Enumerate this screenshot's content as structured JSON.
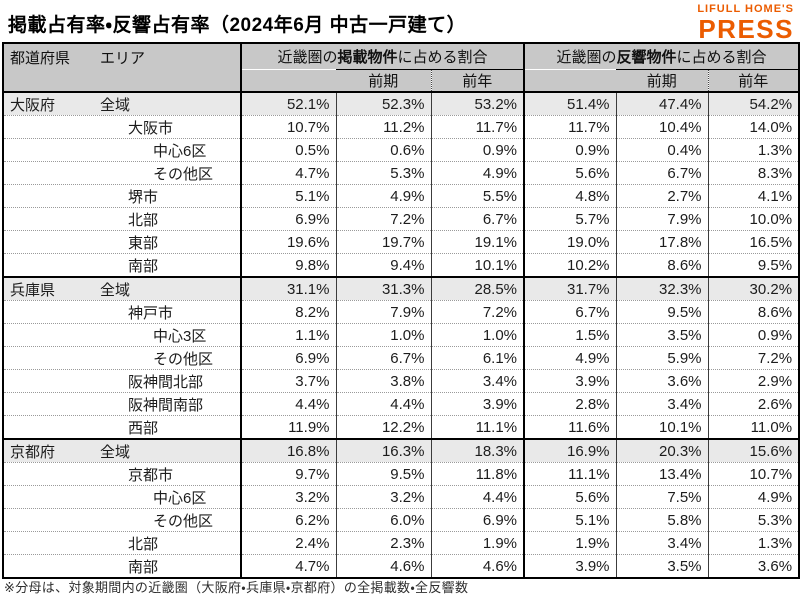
{
  "title": "掲載占有率・反響占有率（2024年6月 中古一戸建て）",
  "logo": {
    "line1": "LIFULL HOME'S",
    "line2": "PRESS",
    "color": "#EB5C01"
  },
  "header": {
    "pref_col": "都道府県",
    "area_col": "エリア",
    "listing": {
      "prefix": "近畿圏の",
      "bold": "掲載物件",
      "suffix": "に占める割合"
    },
    "response": {
      "prefix": "近畿圏の",
      "bold": "反響物件",
      "suffix": "に占める割合"
    },
    "sub": {
      "prev_term": "前期",
      "prev_year": "前年"
    }
  },
  "colors": {
    "header_bg": "#c8c8c8",
    "highlight_bg": "#e9e9e9",
    "accent": "#EB5C01"
  },
  "footnote": "※分母は、対象期間内の近畿圏（大阪府・兵庫県・京都府）の全掲載数・全反響数",
  "chart_data": {
    "type": "table",
    "title": "掲載占有率・反響占有率（2024年6月 中古一戸建て）",
    "columns": [
      "都道府県",
      "エリア",
      "掲載:当期",
      "掲載:前期",
      "掲載:前年",
      "反響:当期",
      "反響:前期",
      "反響:前年"
    ],
    "sections": [
      {
        "prefecture": "大阪府",
        "rows": [
          {
            "area": "全域",
            "indent": 0,
            "highlight": true,
            "values": [
              "52.1%",
              "52.3%",
              "53.2%",
              "51.4%",
              "47.4%",
              "54.2%"
            ]
          },
          {
            "area": "大阪市",
            "indent": 1,
            "highlight": false,
            "values": [
              "10.7%",
              "11.2%",
              "11.7%",
              "11.7%",
              "10.4%",
              "14.0%"
            ]
          },
          {
            "area": "中心6区",
            "indent": 2,
            "highlight": false,
            "values": [
              "0.5%",
              "0.6%",
              "0.9%",
              "0.9%",
              "0.4%",
              "1.3%"
            ]
          },
          {
            "area": "その他区",
            "indent": 2,
            "highlight": false,
            "values": [
              "4.7%",
              "5.3%",
              "4.9%",
              "5.6%",
              "6.7%",
              "8.3%"
            ]
          },
          {
            "area": "堺市",
            "indent": 1,
            "highlight": false,
            "values": [
              "5.1%",
              "4.9%",
              "5.5%",
              "4.8%",
              "2.7%",
              "4.1%"
            ]
          },
          {
            "area": "北部",
            "indent": 1,
            "highlight": false,
            "values": [
              "6.9%",
              "7.2%",
              "6.7%",
              "5.7%",
              "7.9%",
              "10.0%"
            ]
          },
          {
            "area": "東部",
            "indent": 1,
            "highlight": false,
            "values": [
              "19.6%",
              "19.7%",
              "19.1%",
              "19.0%",
              "17.8%",
              "16.5%"
            ]
          },
          {
            "area": "南部",
            "indent": 1,
            "highlight": false,
            "values": [
              "9.8%",
              "9.4%",
              "10.1%",
              "10.2%",
              "8.6%",
              "9.5%"
            ]
          }
        ]
      },
      {
        "prefecture": "兵庫県",
        "rows": [
          {
            "area": "全域",
            "indent": 0,
            "highlight": true,
            "values": [
              "31.1%",
              "31.3%",
              "28.5%",
              "31.7%",
              "32.3%",
              "30.2%"
            ]
          },
          {
            "area": "神戸市",
            "indent": 1,
            "highlight": false,
            "values": [
              "8.2%",
              "7.9%",
              "7.2%",
              "6.7%",
              "9.5%",
              "8.6%"
            ]
          },
          {
            "area": "中心3区",
            "indent": 2,
            "highlight": false,
            "values": [
              "1.1%",
              "1.0%",
              "1.0%",
              "1.5%",
              "3.5%",
              "0.9%"
            ]
          },
          {
            "area": "その他区",
            "indent": 2,
            "highlight": false,
            "values": [
              "6.9%",
              "6.7%",
              "6.1%",
              "4.9%",
              "5.9%",
              "7.2%"
            ]
          },
          {
            "area": "阪神間北部",
            "indent": 1,
            "highlight": false,
            "values": [
              "3.7%",
              "3.8%",
              "3.4%",
              "3.9%",
              "3.6%",
              "2.9%"
            ]
          },
          {
            "area": "阪神間南部",
            "indent": 1,
            "highlight": false,
            "values": [
              "4.4%",
              "4.4%",
              "3.9%",
              "2.8%",
              "3.4%",
              "2.6%"
            ]
          },
          {
            "area": "西部",
            "indent": 1,
            "highlight": false,
            "values": [
              "11.9%",
              "12.2%",
              "11.1%",
              "11.6%",
              "10.1%",
              "11.0%"
            ]
          }
        ]
      },
      {
        "prefecture": "京都府",
        "rows": [
          {
            "area": "全域",
            "indent": 0,
            "highlight": true,
            "values": [
              "16.8%",
              "16.3%",
              "18.3%",
              "16.9%",
              "20.3%",
              "15.6%"
            ]
          },
          {
            "area": "京都市",
            "indent": 1,
            "highlight": false,
            "values": [
              "9.7%",
              "9.5%",
              "11.8%",
              "11.1%",
              "13.4%",
              "10.7%"
            ]
          },
          {
            "area": "中心6区",
            "indent": 2,
            "highlight": false,
            "values": [
              "3.2%",
              "3.2%",
              "4.4%",
              "5.6%",
              "7.5%",
              "4.9%"
            ]
          },
          {
            "area": "その他区",
            "indent": 2,
            "highlight": false,
            "values": [
              "6.2%",
              "6.0%",
              "6.9%",
              "5.1%",
              "5.8%",
              "5.3%"
            ]
          },
          {
            "area": "北部",
            "indent": 1,
            "highlight": false,
            "values": [
              "2.4%",
              "2.3%",
              "1.9%",
              "1.9%",
              "3.4%",
              "1.3%"
            ]
          },
          {
            "area": "南部",
            "indent": 1,
            "highlight": false,
            "values": [
              "4.7%",
              "4.6%",
              "4.6%",
              "3.9%",
              "3.5%",
              "3.6%"
            ]
          }
        ]
      }
    ]
  }
}
